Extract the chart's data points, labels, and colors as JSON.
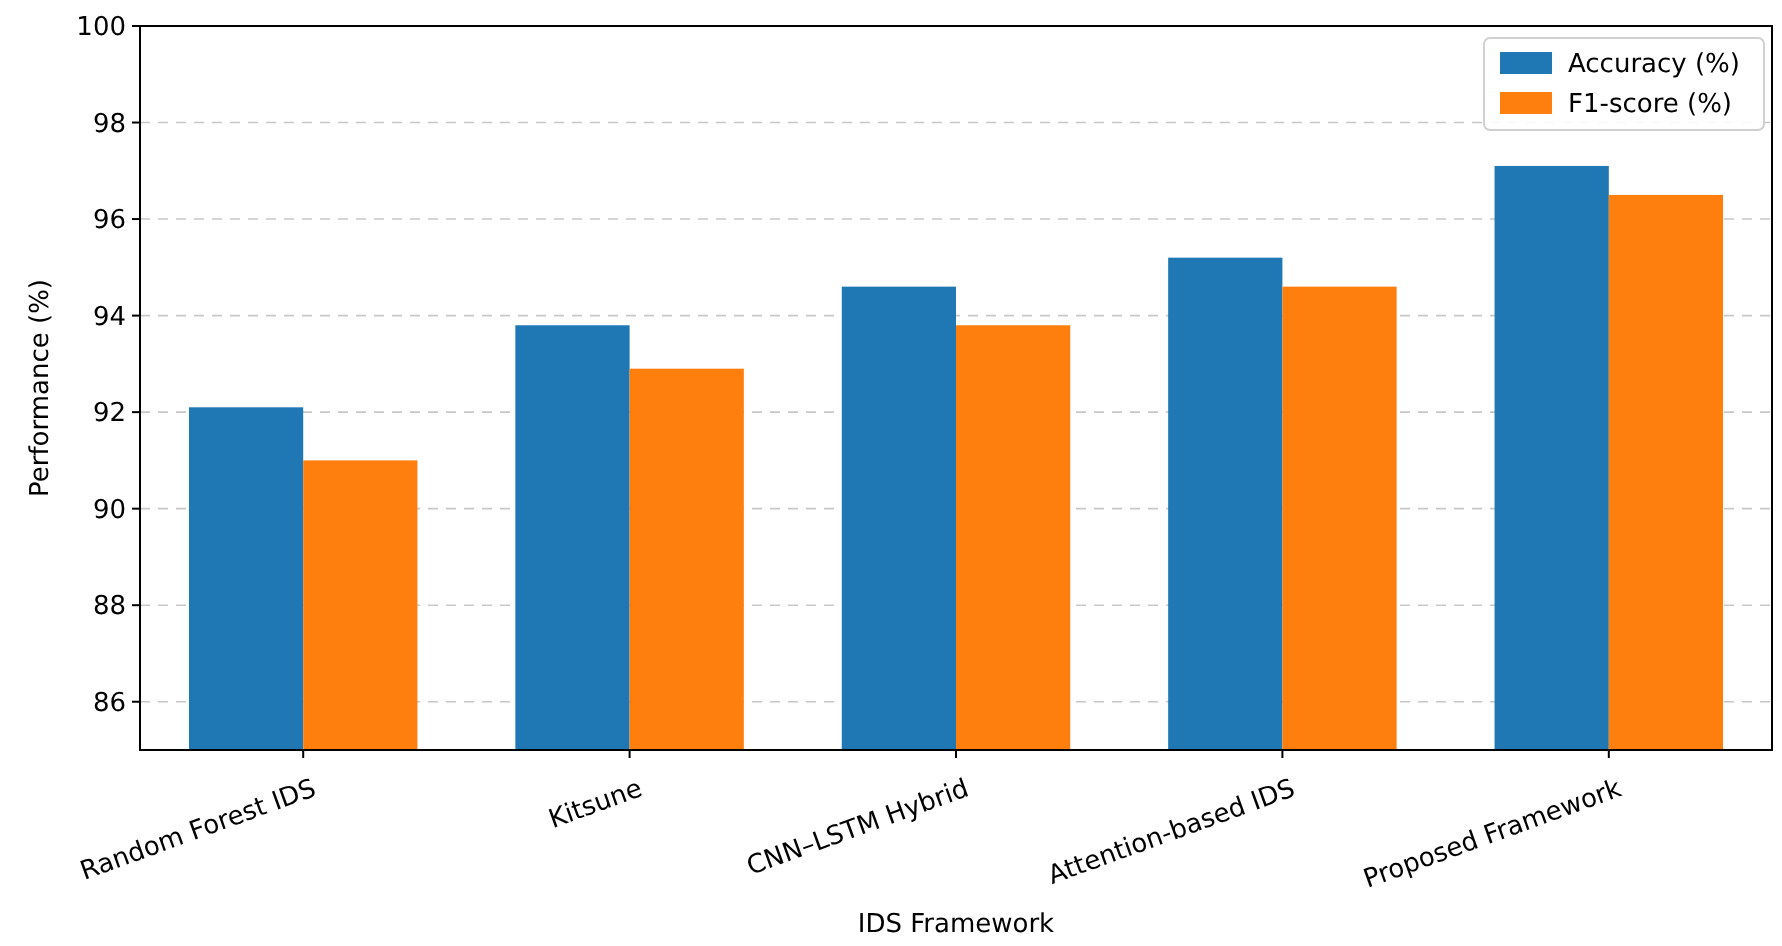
{
  "chart_data": {
    "type": "bar",
    "xlabel": "IDS Framework",
    "ylabel": "Performance (%)",
    "categories": [
      "Random Forest IDS",
      "Kitsune",
      "CNN–LSTM Hybrid",
      "Attention-based IDS",
      "Proposed Framework"
    ],
    "series": [
      {
        "name": "Accuracy (%)",
        "color": "#1f77b4",
        "values": [
          92.1,
          93.8,
          94.6,
          95.2,
          97.1
        ]
      },
      {
        "name": "F1-score (%)",
        "color": "#ff7f0e",
        "values": [
          91.0,
          92.9,
          93.8,
          94.6,
          96.5
        ]
      }
    ],
    "ylim": [
      85,
      100
    ],
    "yticks": [
      86,
      88,
      90,
      92,
      94,
      96,
      98,
      100
    ],
    "grid": "y",
    "legend": "top right"
  }
}
